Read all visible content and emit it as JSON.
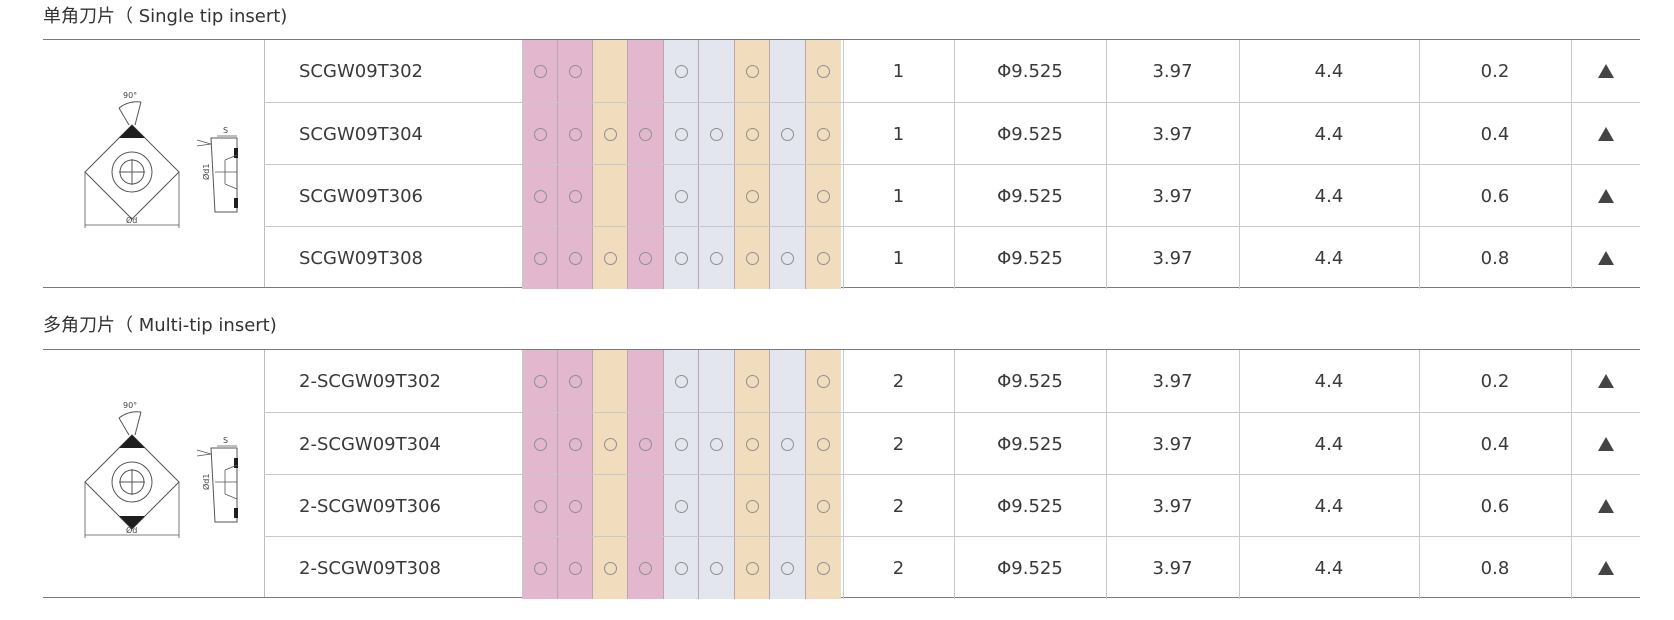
{
  "colors": {
    "pink": "#e3b8cf",
    "tan": "#f1dcbd",
    "lavender": "#e4e6ef",
    "circle": "#8f8f8f",
    "triangle": "#444444"
  },
  "grade_columns": [
    "pink",
    "pink",
    "tan",
    "pink",
    "lavender",
    "lavender",
    "tan",
    "lavender",
    "tan"
  ],
  "sections": [
    {
      "title": "单角刀片（ Single tip insert)",
      "diagram": {
        "label_angle": "90°",
        "label_s": "S",
        "label_d1": "Ød1",
        "label_d": "Ød",
        "tips": 1
      },
      "rows": [
        {
          "model": "SCGW09T302",
          "marks": [
            1,
            1,
            0,
            0,
            1,
            0,
            1,
            0,
            1
          ],
          "tips": "1",
          "d": "Φ9.525",
          "s": "3.97",
          "d1": "4.4",
          "r": "0.2",
          "stock": "▲"
        },
        {
          "model": "SCGW09T304",
          "marks": [
            1,
            1,
            1,
            1,
            1,
            1,
            1,
            1,
            1
          ],
          "tips": "1",
          "d": "Φ9.525",
          "s": "3.97",
          "d1": "4.4",
          "r": "0.4",
          "stock": "▲"
        },
        {
          "model": "SCGW09T306",
          "marks": [
            1,
            1,
            0,
            0,
            1,
            0,
            1,
            0,
            1
          ],
          "tips": "1",
          "d": "Φ9.525",
          "s": "3.97",
          "d1": "4.4",
          "r": "0.6",
          "stock": "▲"
        },
        {
          "model": "SCGW09T308",
          "marks": [
            1,
            1,
            1,
            1,
            1,
            1,
            1,
            1,
            1
          ],
          "tips": "1",
          "d": "Φ9.525",
          "s": "3.97",
          "d1": "4.4",
          "r": "0.8",
          "stock": "▲"
        }
      ]
    },
    {
      "title": "多角刀片（ Multi-tip insert)",
      "diagram": {
        "label_angle": "90°",
        "label_s": "S",
        "label_d1": "Ød1",
        "label_d": "Ød",
        "tips": 2
      },
      "rows": [
        {
          "model": "2-SCGW09T302",
          "marks": [
            1,
            1,
            0,
            0,
            1,
            0,
            1,
            0,
            1
          ],
          "tips": "2",
          "d": "Φ9.525",
          "s": "3.97",
          "d1": "4.4",
          "r": "0.2",
          "stock": "▲"
        },
        {
          "model": "2-SCGW09T304",
          "marks": [
            1,
            1,
            1,
            1,
            1,
            1,
            1,
            1,
            1
          ],
          "tips": "2",
          "d": "Φ9.525",
          "s": "3.97",
          "d1": "4.4",
          "r": "0.4",
          "stock": "▲"
        },
        {
          "model": "2-SCGW09T306",
          "marks": [
            1,
            1,
            0,
            0,
            1,
            0,
            1,
            0,
            1
          ],
          "tips": "2",
          "d": "Φ9.525",
          "s": "3.97",
          "d1": "4.4",
          "r": "0.6",
          "stock": "▲"
        },
        {
          "model": "2-SCGW09T308",
          "marks": [
            1,
            1,
            1,
            1,
            1,
            1,
            1,
            1,
            1
          ],
          "tips": "2",
          "d": "Φ9.525",
          "s": "3.97",
          "d1": "4.4",
          "r": "0.8",
          "stock": "▲"
        }
      ]
    }
  ]
}
